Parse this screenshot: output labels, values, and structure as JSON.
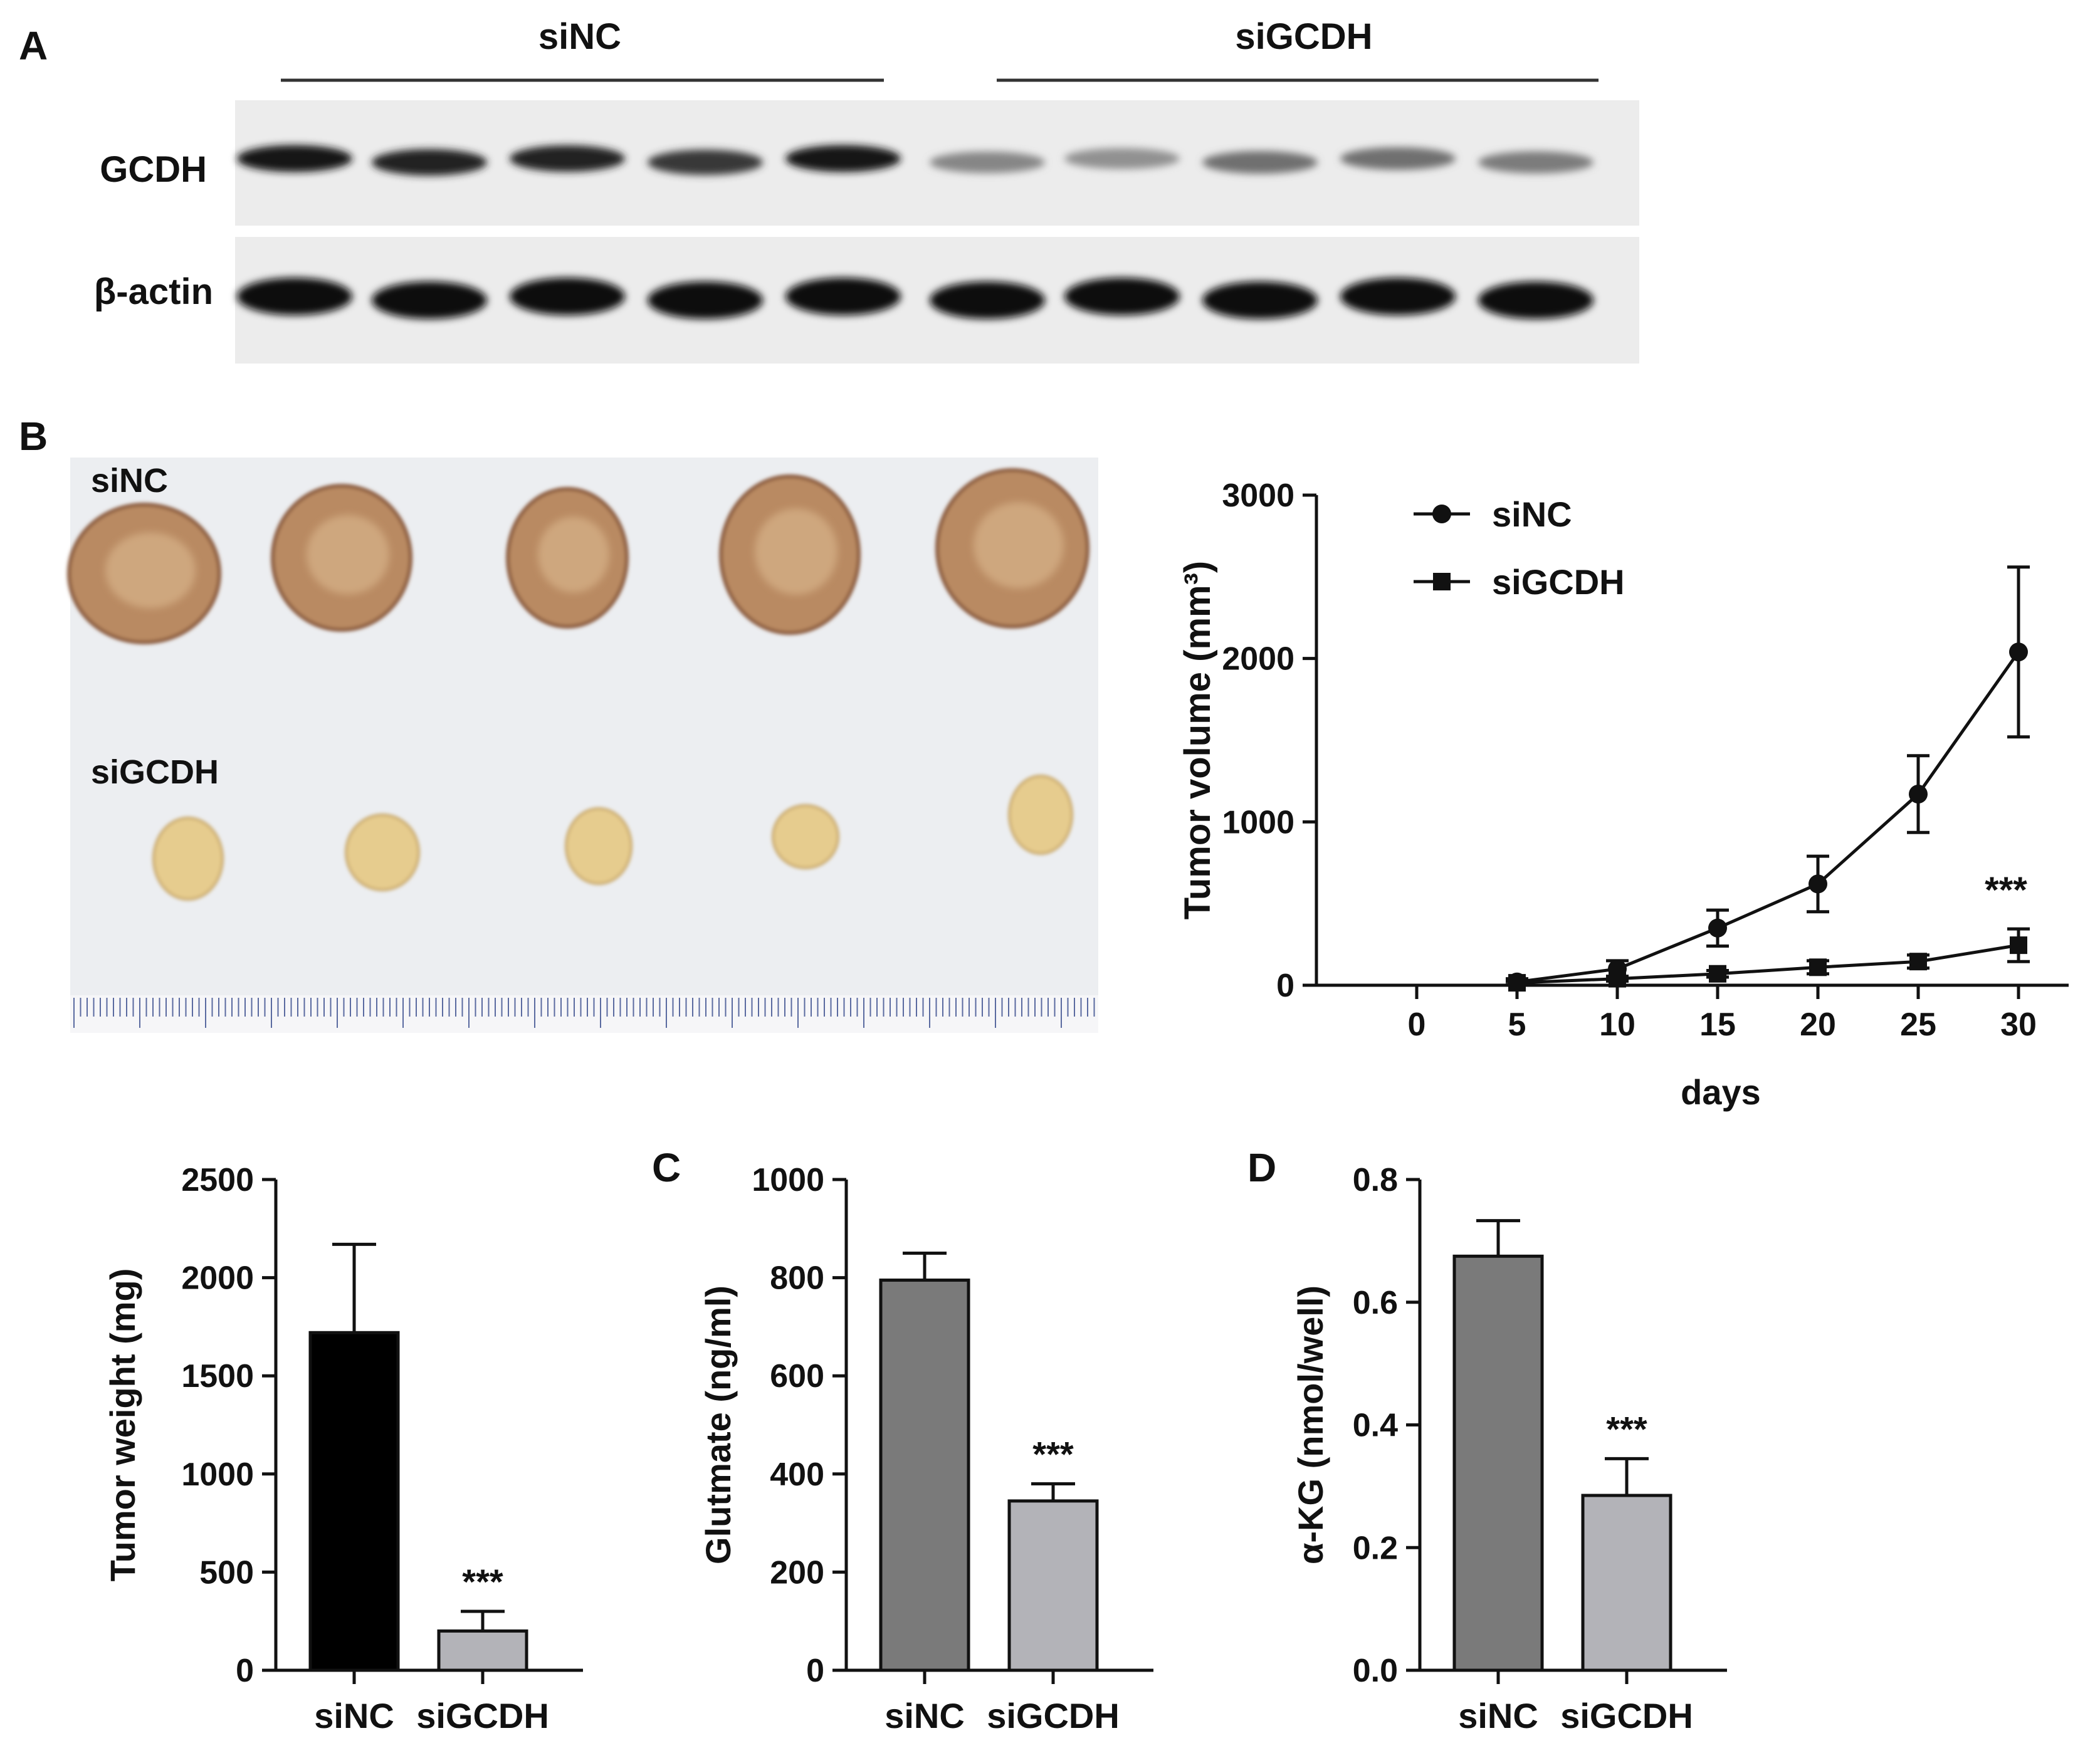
{
  "panel_labels": {
    "a": "A",
    "b": "B",
    "c": "C",
    "d": "D"
  },
  "western_blot": {
    "groups": [
      "siNC",
      "siGCDH"
    ],
    "rows": [
      {
        "label": "GCDH",
        "band_intensity": [
          0.95,
          0.9,
          0.9,
          0.8,
          0.95,
          0.45,
          0.4,
          0.55,
          0.55,
          0.5
        ]
      },
      {
        "label": "β-actin",
        "band_intensity": [
          1.0,
          1.0,
          1.0,
          1.0,
          1.0,
          1.0,
          1.0,
          1.0,
          1.0,
          1.0
        ]
      }
    ]
  },
  "tumor_photo": {
    "labels": [
      "siNC",
      "siGCDH"
    ],
    "colors": {
      "siNC": "#b98a62",
      "siGCDH": "#e6cc8e",
      "background": "#eceef1"
    }
  },
  "colors": {
    "dark_bar": "#7a7a7a",
    "light_bar": "#b3b3b8",
    "black_bar": "#000000",
    "line": "#111111"
  },
  "chart_data": [
    {
      "type": "line",
      "xlabel": "days",
      "ylabel": "Tumor volume (mm³)",
      "x": [
        0,
        5,
        10,
        15,
        20,
        25,
        30
      ],
      "xlim": [
        0,
        30
      ],
      "ylim": [
        0,
        3000
      ],
      "yticks": [
        0,
        1000,
        2000,
        3000
      ],
      "legend_position": "top-left",
      "significance": "***",
      "series": [
        {
          "name": "siNC",
          "marker": "circle",
          "x": [
            5,
            10,
            15,
            20,
            25,
            30
          ],
          "values": [
            20,
            100,
            350,
            620,
            1170,
            2040
          ],
          "error": [
            20,
            50,
            110,
            170,
            235,
            520
          ]
        },
        {
          "name": "siGCDH",
          "marker": "square",
          "x": [
            5,
            10,
            15,
            20,
            25,
            30
          ],
          "values": [
            15,
            40,
            70,
            110,
            145,
            245
          ],
          "error": [
            10,
            15,
            20,
            40,
            40,
            100
          ]
        }
      ]
    },
    {
      "type": "bar",
      "categories": [
        "siNC",
        "siGCDH"
      ],
      "values": [
        1720,
        200
      ],
      "error": [
        450,
        100
      ],
      "ylabel": "Tumor weight (mg)",
      "ylim": [
        0,
        2500
      ],
      "yticks": [
        0,
        500,
        1000,
        1500,
        2000,
        2500
      ],
      "significance": "***"
    },
    {
      "type": "bar",
      "categories": [
        "siNC",
        "siGCDH"
      ],
      "values": [
        795,
        345
      ],
      "error": [
        55,
        35
      ],
      "ylabel": "Glutmate (ng/ml)",
      "ylim": [
        0,
        1000
      ],
      "yticks": [
        0,
        200,
        400,
        600,
        800,
        1000
      ],
      "significance": "***"
    },
    {
      "type": "bar",
      "categories": [
        "siNC",
        "siGCDH"
      ],
      "values": [
        0.675,
        0.285
      ],
      "error": [
        0.058,
        0.06
      ],
      "ylabel": "α-KG (nmol/well)",
      "ylim": [
        0,
        0.8
      ],
      "yticks": [
        "0.0",
        "0.2",
        "0.4",
        "0.6",
        "0.8"
      ],
      "significance": "***"
    }
  ]
}
